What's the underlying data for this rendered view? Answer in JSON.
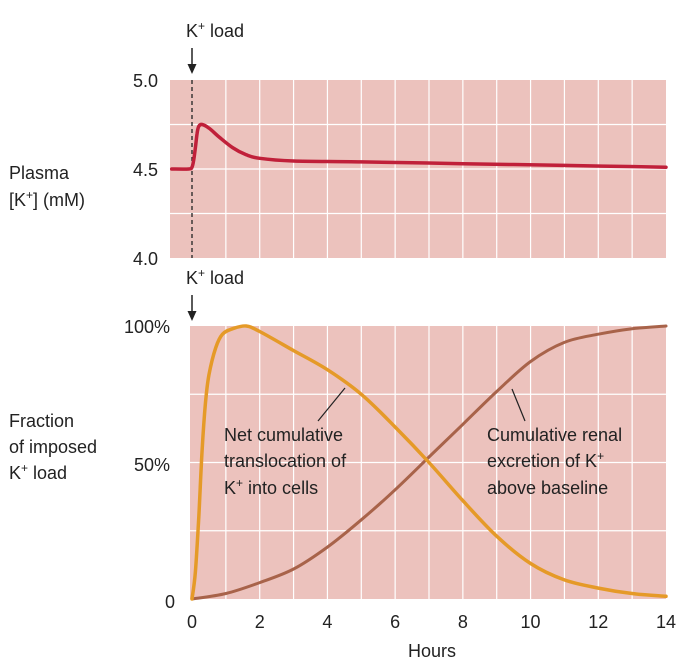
{
  "colors": {
    "panel_bg": "#ecc2bd",
    "grid": "#ffffff",
    "plasma_line": "#c0203a",
    "translocation_line": "#e59a28",
    "excretion_line": "#a8634a",
    "text": "#222222"
  },
  "chart_data": [
    {
      "type": "line",
      "ylabel": {
        "line1": "Plasma",
        "line2_pre": "[K",
        "line2_sup": "+",
        "line2_post": "] (mM)"
      },
      "event_label": {
        "pre": "K",
        "sup": "+",
        "post": " load"
      },
      "ylim": [
        4.0,
        5.0
      ],
      "xlim": [
        0,
        14
      ],
      "ytick_labels": [
        "5.0",
        "4.5",
        "4.0"
      ],
      "grid": true,
      "series": [
        {
          "x": [
            -0.6,
            -0.1,
            0.0,
            0.05,
            0.1,
            0.15,
            0.2,
            0.3,
            0.5,
            0.8,
            1.2,
            1.6,
            2.0,
            3.0,
            5.0,
            8.0,
            11.0,
            14.0
          ],
          "y": [
            4.5,
            4.5,
            4.51,
            4.55,
            4.62,
            4.7,
            4.74,
            4.75,
            4.73,
            4.68,
            4.62,
            4.58,
            4.56,
            4.545,
            4.54,
            4.53,
            4.52,
            4.51
          ]
        }
      ]
    },
    {
      "type": "line",
      "ylabel": {
        "line1": "Fraction",
        "line2": "of imposed",
        "line3_pre": "K",
        "line3_sup": "+",
        "line3_post": " load"
      },
      "event_label": {
        "pre": "K",
        "sup": "+",
        "post": " load"
      },
      "ylim": [
        0,
        100
      ],
      "xlim": [
        0,
        14
      ],
      "ytick_labels": [
        "100%",
        "50%",
        "0"
      ],
      "xtick_labels": [
        "0",
        "2",
        "4",
        "6",
        "8",
        "10",
        "12",
        "14"
      ],
      "xlabel": "Hours",
      "grid": true,
      "series": [
        {
          "x": [
            0.0,
            0.1,
            0.2,
            0.3,
            0.4,
            0.5,
            0.7,
            0.9,
            1.2,
            1.6,
            2.0,
            3.0,
            4.0,
            5.0,
            6.0,
            7.0,
            8.0,
            9.0,
            10.0,
            11.0,
            12.0,
            13.0,
            14.0
          ],
          "y": [
            0,
            10,
            30,
            55,
            72,
            82,
            92,
            97,
            99,
            100,
            98,
            91,
            84,
            75,
            63,
            50,
            36,
            23,
            13,
            7,
            4,
            2,
            1
          ]
        },
        {
          "x": [
            0.0,
            1.0,
            2.0,
            3.0,
            4.0,
            5.0,
            6.0,
            7.0,
            8.0,
            9.0,
            10.0,
            11.0,
            12.0,
            13.0,
            14.0
          ],
          "y": [
            0,
            2,
            6,
            11,
            19,
            29,
            40,
            52,
            64,
            76,
            87,
            94,
            97,
            99,
            100
          ]
        }
      ],
      "annotations": {
        "translocation": {
          "line1": "Net cumulative",
          "line2": "translocation of",
          "line3_pre": "K",
          "line3_sup": "+",
          "line3_post": " into cells"
        },
        "excretion": {
          "line1": "Cumulative renal",
          "line2_pre": "excretion of K",
          "line2_sup": "+",
          "line3": "above baseline"
        }
      }
    }
  ]
}
